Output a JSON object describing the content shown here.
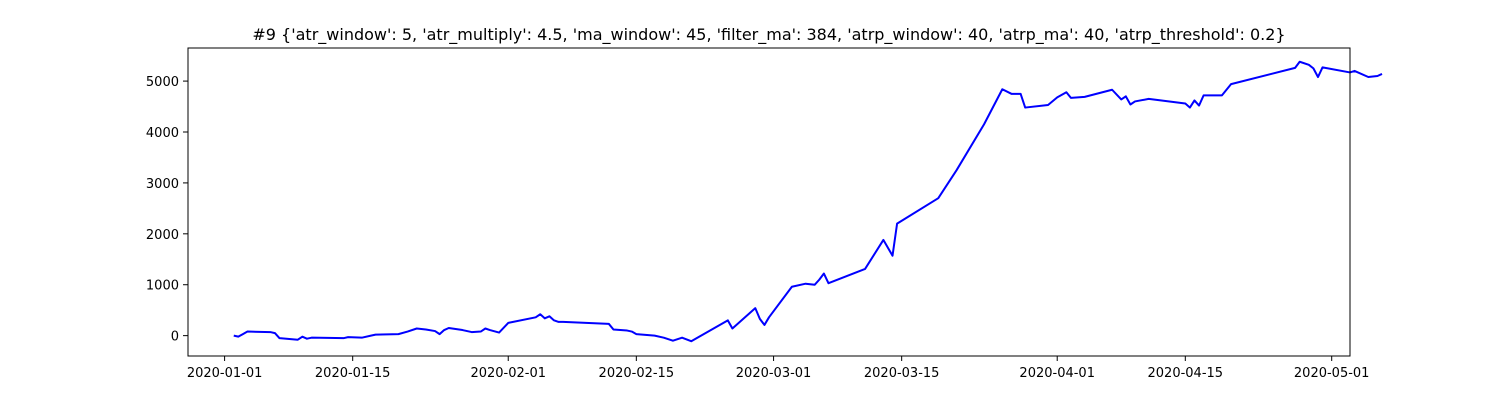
{
  "chart_data": {
    "type": "line",
    "title": "#9 {'atr_window': 5, 'atr_multiply': 4.5, 'ma_window': 45, 'filter_ma': 384, 'atrp_window': 40, 'atrp_ma': 40, 'atrp_threshold': 0.2}",
    "xlabel": "",
    "ylabel": "",
    "xlim": [
      "2019-12-28",
      "2020-05-03"
    ],
    "ylim": [
      -400,
      5650
    ],
    "x_ticks": [
      "2020-01-01",
      "2020-01-15",
      "2020-02-01",
      "2020-02-15",
      "2020-03-01",
      "2020-03-15",
      "2020-04-01",
      "2020-04-15",
      "2020-05-01"
    ],
    "y_ticks": [
      0,
      1000,
      2000,
      3000,
      4000,
      5000
    ],
    "grid": false,
    "line_color": "#0000ff",
    "series": [
      {
        "points": [
          [
            "2020-01-02",
            0
          ],
          [
            "2020-01-02T12:00",
            -20
          ],
          [
            "2020-01-03",
            30
          ],
          [
            "2020-01-03T12:00",
            80
          ],
          [
            "2020-01-06",
            70
          ],
          [
            "2020-01-06T12:00",
            50
          ],
          [
            "2020-01-07",
            -50
          ],
          [
            "2020-01-09",
            -80
          ],
          [
            "2020-01-09T12:00",
            -20
          ],
          [
            "2020-01-10",
            -60
          ],
          [
            "2020-01-10T12:00",
            -40
          ],
          [
            "2020-01-14",
            -50
          ],
          [
            "2020-01-14T12:00",
            -30
          ],
          [
            "2020-01-16",
            -40
          ],
          [
            "2020-01-17",
            0
          ],
          [
            "2020-01-17T12:00",
            20
          ],
          [
            "2020-01-20",
            30
          ],
          [
            "2020-01-21",
            80
          ],
          [
            "2020-01-22",
            140
          ],
          [
            "2020-01-23",
            120
          ],
          [
            "2020-01-24",
            90
          ],
          [
            "2020-01-24T12:00",
            30
          ],
          [
            "2020-01-25",
            110
          ],
          [
            "2020-01-25T12:00",
            150
          ],
          [
            "2020-01-27",
            110
          ],
          [
            "2020-01-28",
            70
          ],
          [
            "2020-01-29",
            80
          ],
          [
            "2020-01-29T12:00",
            140
          ],
          [
            "2020-01-30",
            110
          ],
          [
            "2020-01-31",
            60
          ],
          [
            "2020-02-01",
            250
          ],
          [
            "2020-02-04",
            360
          ],
          [
            "2020-02-04T12:00",
            420
          ],
          [
            "2020-02-05",
            340
          ],
          [
            "2020-02-05T12:00",
            380
          ],
          [
            "2020-02-06",
            300
          ],
          [
            "2020-02-06T12:00",
            270
          ],
          [
            "2020-02-07",
            270
          ],
          [
            "2020-02-12",
            230
          ],
          [
            "2020-02-12T12:00",
            120
          ],
          [
            "2020-02-14",
            100
          ],
          [
            "2020-02-14T12:00",
            80
          ],
          [
            "2020-02-15",
            30
          ],
          [
            "2020-02-17",
            0
          ],
          [
            "2020-02-18",
            -40
          ],
          [
            "2020-02-19",
            -100
          ],
          [
            "2020-02-20",
            -40
          ],
          [
            "2020-02-21",
            -110
          ],
          [
            "2020-02-25",
            300
          ],
          [
            "2020-02-25T12:00",
            140
          ],
          [
            "2020-02-28",
            540
          ],
          [
            "2020-02-28T12:00",
            330
          ],
          [
            "2020-02-29",
            210
          ],
          [
            "2020-02-29T12:00",
            360
          ],
          [
            "2020-03-03",
            960
          ],
          [
            "2020-03-04T12:00",
            1020
          ],
          [
            "2020-03-05T12:00",
            1000
          ],
          [
            "2020-03-06",
            1100
          ],
          [
            "2020-03-06T12:00",
            1220
          ],
          [
            "2020-03-07",
            1030
          ],
          [
            "2020-03-11",
            1310
          ],
          [
            "2020-03-13",
            1880
          ],
          [
            "2020-03-14",
            1570
          ],
          [
            "2020-03-14T12:00",
            2200
          ],
          [
            "2020-03-19",
            2700
          ],
          [
            "2020-03-21",
            3250
          ],
          [
            "2020-03-24",
            4150
          ],
          [
            "2020-03-26",
            4840
          ],
          [
            "2020-03-27",
            4750
          ],
          [
            "2020-03-28",
            4750
          ],
          [
            "2020-03-28T12:00",
            4480
          ],
          [
            "2020-03-31",
            4530
          ],
          [
            "2020-04-01",
            4680
          ],
          [
            "2020-04-02",
            4780
          ],
          [
            "2020-04-02T12:00",
            4670
          ],
          [
            "2020-04-04",
            4690
          ],
          [
            "2020-04-07",
            4830
          ],
          [
            "2020-04-08",
            4640
          ],
          [
            "2020-04-08T12:00",
            4700
          ],
          [
            "2020-04-09",
            4540
          ],
          [
            "2020-04-09T12:00",
            4600
          ],
          [
            "2020-04-11",
            4650
          ],
          [
            "2020-04-15",
            4560
          ],
          [
            "2020-04-15T12:00",
            4480
          ],
          [
            "2020-04-16",
            4620
          ],
          [
            "2020-04-16T12:00",
            4520
          ],
          [
            "2020-04-17",
            4720
          ],
          [
            "2020-04-19",
            4720
          ],
          [
            "2020-04-20",
            4940
          ],
          [
            "2020-04-27",
            5260
          ],
          [
            "2020-04-27T12:00",
            5380
          ],
          [
            "2020-04-28T12:00",
            5320
          ],
          [
            "2020-04-29",
            5250
          ],
          [
            "2020-04-29T12:00",
            5080
          ],
          [
            "2020-04-30",
            5270
          ],
          [
            "2020-05-03",
            5170
          ],
          [
            "2020-05-03T12:00",
            5200
          ],
          [
            "2020-05-05",
            5080
          ],
          [
            "2020-05-06",
            5100
          ],
          [
            "2020-05-06T12:00",
            5140
          ]
        ]
      }
    ]
  }
}
